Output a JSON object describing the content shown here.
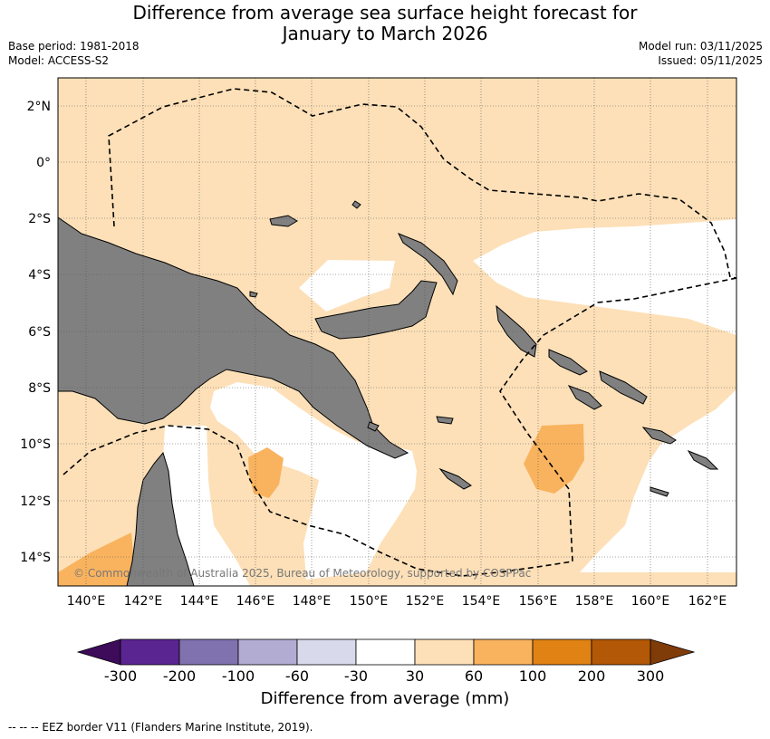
{
  "header": {
    "title_line1": "Difference from average sea surface height forecast for",
    "title_line2": "January to March 2026",
    "base_period": "Base period: 1981-2018",
    "model": "Model: ACCESS-S2",
    "model_run": "Model run: 03/11/2025",
    "issued": "Issued: 05/11/2025"
  },
  "map": {
    "lat_labels": [
      "2°N",
      "0°",
      "2°S",
      "4°S",
      "6°S",
      "8°S",
      "10°S",
      "12°S",
      "14°S"
    ],
    "lon_labels": [
      "140°E",
      "142°E",
      "144°E",
      "146°E",
      "148°E",
      "150°E",
      "152°E",
      "154°E",
      "156°E",
      "158°E",
      "160°E",
      "162°E"
    ],
    "copyright": "© Commonwealth of Australia 2025, Bureau of Meteorology, supported by COSPPac",
    "land_color": "#808080",
    "ocean_anomaly_30_60_color": "#fde0b8",
    "ocean_anomaly_60_100_color": "#f9b35e"
  },
  "colorbar": {
    "labels": [
      "-300",
      "-200",
      "-100",
      "-60",
      "-30",
      "30",
      "60",
      "100",
      "200",
      "300"
    ],
    "colors": [
      "#3d0b5a",
      "#5a2590",
      "#8072ae",
      "#b2abd2",
      "#d8daeb",
      "#ffffff",
      "#fde0b8",
      "#f9b35e",
      "#e08214",
      "#b35806",
      "#7f3b08"
    ],
    "title": "Difference from average (mm)"
  },
  "footer": {
    "legend_text": "--  --  -- EEZ border V11 (Flanders Marine Institute, 2019)."
  }
}
